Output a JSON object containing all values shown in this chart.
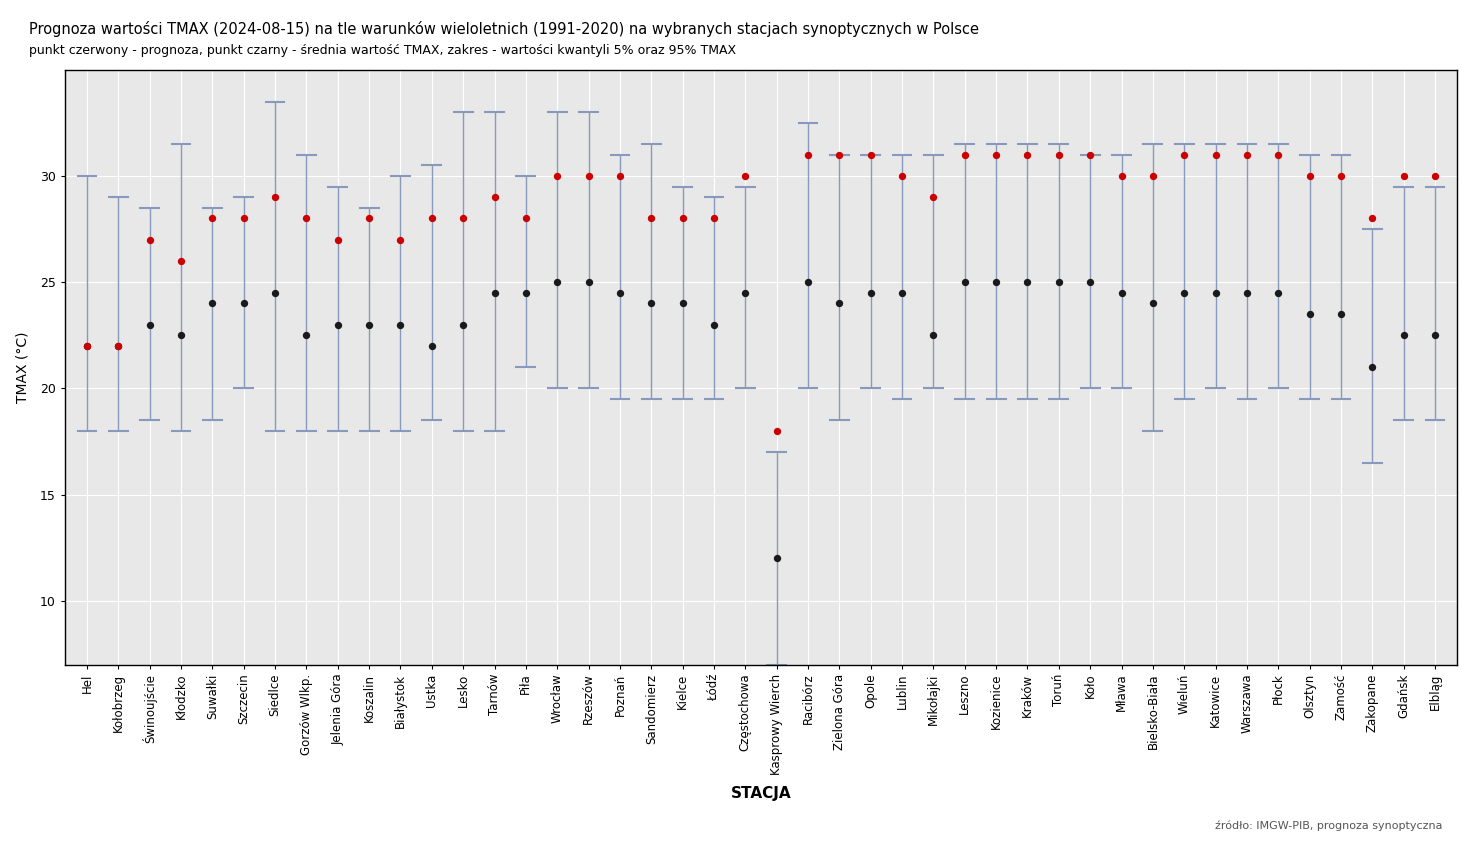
{
  "title": "Prognoza wartości TMAX (2024-08-15) na tle warunków wieloletnich (1991-2020) na wybranych stacjach synoptycznych w Polsce",
  "subtitle": "punkt czerwony - prognoza, punkt czarny - średnia wartość TMAX, zakres - wartości kwantyli 5% oraz 95% TMAX",
  "xlabel": "STACJA",
  "ylabel": "TMAX (°C)",
  "source": "źródło: IMGW-PIB, prognoza synoptyczna",
  "stations": [
    "Hel",
    "Kołobrzeg",
    "Świnoujście",
    "Kłodzko",
    "Suwałki",
    "Szczecin",
    "Siedlce",
    "Gorzów Wlkp.",
    "Jelenia Góra",
    "Koszalin",
    "Białystok",
    "Ustka",
    "Lesko",
    "Tarnów",
    "Piła",
    "Wrocław",
    "Rzeszów",
    "Poznań",
    "Sandomierz",
    "Kielce",
    "Łódź",
    "Częstochowa",
    "Kasprowy Wierch",
    "Racibórz",
    "Zielona Góra",
    "Opole",
    "Lublin",
    "Mikołajki",
    "Leszno",
    "Kozienice",
    "Kraków",
    "Toruń",
    "Koło",
    "Mława",
    "Bielsko-Biała",
    "Wieluń",
    "Katowice",
    "Warszawa",
    "Płock",
    "Olsztyn",
    "Zamość",
    "Zakopane",
    "Gdańsk",
    "Elbląg"
  ],
  "forecast": [
    22.0,
    22.0,
    27.0,
    26.0,
    28.0,
    28.0,
    29.0,
    28.0,
    27.0,
    28.0,
    27.0,
    28.0,
    28.0,
    29.0,
    28.0,
    30.0,
    30.0,
    30.0,
    28.0,
    28.0,
    28.0,
    30.0,
    18.0,
    31.0,
    31.0,
    31.0,
    30.0,
    29.0,
    31.0,
    31.0,
    31.0,
    31.0,
    31.0,
    30.0,
    30.0,
    31.0,
    31.0,
    31.0,
    31.0,
    30.0,
    30.0,
    28.0,
    30.0,
    30.0
  ],
  "mean": [
    22.0,
    22.0,
    23.0,
    22.5,
    24.0,
    24.0,
    24.5,
    22.5,
    23.0,
    23.0,
    23.0,
    22.0,
    23.0,
    24.5,
    24.5,
    25.0,
    25.0,
    24.5,
    24.0,
    24.0,
    23.0,
    24.5,
    12.0,
    25.0,
    24.0,
    24.5,
    24.5,
    22.5,
    25.0,
    25.0,
    25.0,
    25.0,
    25.0,
    24.5,
    24.0,
    24.5,
    24.5,
    24.5,
    24.5,
    23.5,
    23.5,
    21.0,
    22.5,
    22.5
  ],
  "q05": [
    18.0,
    18.0,
    18.5,
    18.0,
    18.5,
    20.0,
    18.0,
    18.0,
    18.0,
    18.0,
    18.0,
    18.5,
    18.0,
    18.0,
    21.0,
    20.0,
    20.0,
    19.5,
    19.5,
    19.5,
    19.5,
    20.0,
    7.0,
    20.0,
    18.5,
    20.0,
    19.5,
    20.0,
    19.5,
    19.5,
    19.5,
    19.5,
    20.0,
    20.0,
    18.0,
    19.5,
    20.0,
    19.5,
    20.0,
    19.5,
    19.5,
    16.5,
    18.5,
    18.5
  ],
  "q95": [
    30.0,
    29.0,
    28.5,
    31.5,
    28.5,
    29.0,
    33.5,
    31.0,
    29.5,
    28.5,
    30.0,
    30.5,
    33.0,
    33.0,
    30.0,
    33.0,
    33.0,
    31.0,
    31.5,
    29.5,
    29.0,
    29.5,
    17.0,
    32.5,
    31.0,
    31.0,
    31.0,
    31.0,
    31.5,
    31.5,
    31.5,
    31.5,
    31.0,
    31.0,
    31.5,
    31.5,
    31.5,
    31.5,
    31.5,
    31.0,
    31.0,
    27.5,
    29.5,
    29.5
  ],
  "outer_bg": "#ffffff",
  "plot_bg": "#e8e8e8",
  "grid_color": "#ffffff",
  "dot_mean_color": "#1a1a1a",
  "dot_forecast_color": "#cc0000",
  "bar_color": "#8899bb",
  "ylim": [
    7,
    35
  ],
  "yticks": [
    10,
    15,
    20,
    25,
    30
  ]
}
